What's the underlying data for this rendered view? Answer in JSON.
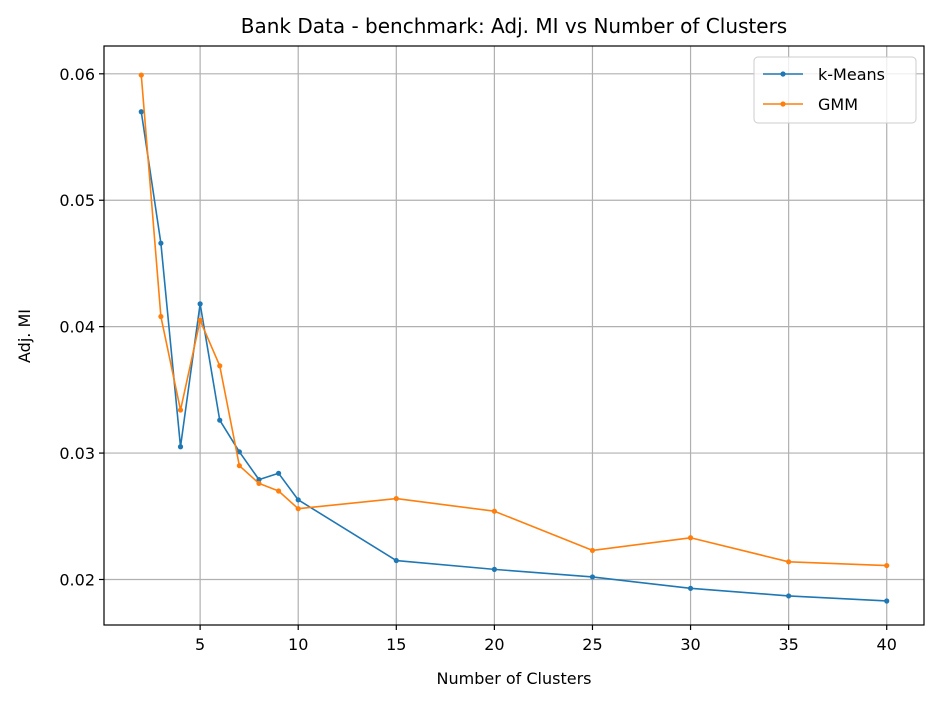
{
  "chart_data": {
    "type": "line",
    "title": "Bank Data - benchmark: Adj. MI vs Number of Clusters",
    "xlabel": "Number of Clusters",
    "ylabel": "Adj. MI",
    "x": [
      2,
      3,
      4,
      5,
      6,
      7,
      8,
      9,
      10,
      15,
      20,
      25,
      30,
      35,
      40
    ],
    "xticks": [
      5,
      10,
      15,
      20,
      25,
      30,
      35,
      40
    ],
    "xtick_labels": [
      "5",
      "10",
      "15",
      "20",
      "25",
      "30",
      "35",
      "40"
    ],
    "yticks": [
      0.02,
      0.03,
      0.04,
      0.05,
      0.06
    ],
    "ytick_labels": [
      "0.02",
      "0.03",
      "0.04",
      "0.05",
      "0.06"
    ],
    "xlim": [
      0.1,
      41.9
    ],
    "ylim": [
      0.0164,
      0.0622
    ],
    "grid": true,
    "legend_position": "top-right",
    "series": [
      {
        "name": "k-Means",
        "color": "#1f77b4",
        "values": [
          0.057,
          0.0466,
          0.0305,
          0.0418,
          0.0326,
          0.0301,
          0.0279,
          0.0284,
          0.0263,
          0.0215,
          0.0208,
          0.0202,
          0.0193,
          0.0187,
          0.0183
        ]
      },
      {
        "name": "GMM",
        "color": "#ff7f0e",
        "values": [
          0.0599,
          0.0408,
          0.0334,
          0.0405,
          0.0369,
          0.029,
          0.0276,
          0.027,
          0.0256,
          0.0264,
          0.0254,
          0.0223,
          0.0233,
          0.0214,
          0.0211
        ]
      }
    ]
  }
}
